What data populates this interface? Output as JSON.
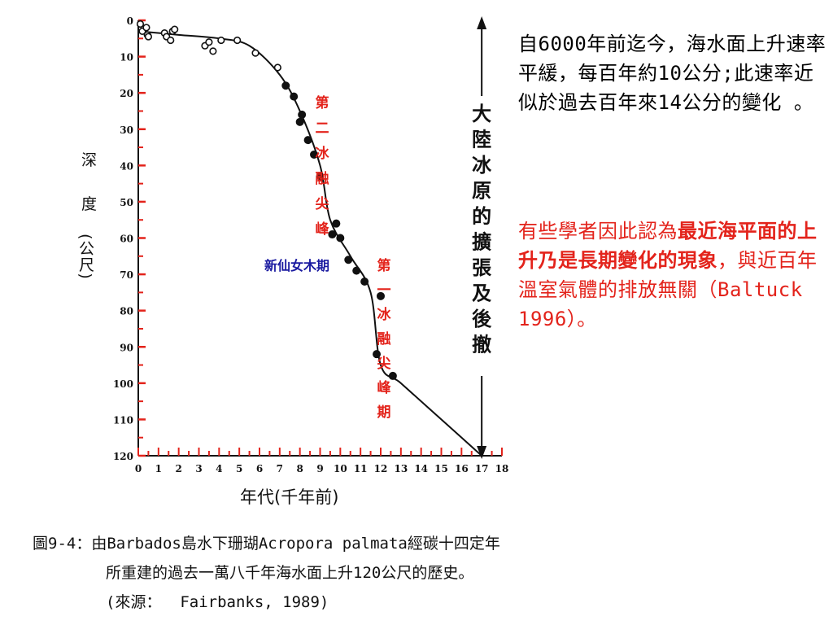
{
  "chart_data": {
    "type": "scatter",
    "x_label": "年代(千年前)",
    "y_label_parts": [
      "深",
      "度",
      "(公尺)"
    ],
    "x_ticks": [
      "0",
      "1",
      "2",
      "3",
      "4",
      "5",
      "6",
      "7",
      "8",
      "9",
      "10",
      "11",
      "12",
      "13",
      "14",
      "15",
      "16",
      "17",
      "18"
    ],
    "y_ticks": [
      "0",
      "10",
      "20",
      "30",
      "40",
      "50",
      "60",
      "70",
      "80",
      "90",
      "100",
      "110",
      "120"
    ],
    "xlim": [
      0,
      18
    ],
    "ylim": [
      0,
      120
    ],
    "y_inverted": true,
    "colors": {
      "axis": "#111111",
      "minor_ticks": "#e3231b",
      "annotation_red": "#e3231b",
      "annotation_blue": "#1a1aa0"
    },
    "series": [
      {
        "marker": "open-circle",
        "points": [
          [
            0.1,
            1
          ],
          [
            0.2,
            3
          ],
          [
            0.4,
            2
          ],
          [
            0.45,
            4
          ],
          [
            0.5,
            4.5
          ],
          [
            1.3,
            3.5
          ],
          [
            1.4,
            4.5
          ],
          [
            1.6,
            5.5
          ],
          [
            1.7,
            3
          ],
          [
            1.8,
            2.5
          ],
          [
            3.3,
            7
          ],
          [
            3.5,
            6
          ],
          [
            3.7,
            8.5
          ],
          [
            4.1,
            5.5
          ],
          [
            4.9,
            5.5
          ],
          [
            5.8,
            9
          ],
          [
            6.9,
            13
          ]
        ]
      },
      {
        "marker": "filled-circle",
        "points": [
          [
            7.3,
            18
          ],
          [
            7.7,
            21
          ],
          [
            8.1,
            26
          ],
          [
            8.0,
            28
          ],
          [
            8.4,
            33
          ],
          [
            8.7,
            37
          ],
          [
            9.0,
            43
          ],
          [
            9.6,
            59
          ],
          [
            9.8,
            56
          ],
          [
            10.0,
            60
          ],
          [
            10.4,
            66
          ],
          [
            10.8,
            69
          ],
          [
            11.2,
            72
          ],
          [
            11.8,
            92
          ],
          [
            12.0,
            76
          ],
          [
            12.6,
            98
          ]
        ]
      }
    ],
    "curve": [
      [
        0,
        3
      ],
      [
        2,
        4
      ],
      [
        4,
        5
      ],
      [
        5.5,
        7
      ],
      [
        7,
        15
      ],
      [
        8,
        25
      ],
      [
        9,
        40
      ],
      [
        9.5,
        55
      ],
      [
        10.5,
        65
      ],
      [
        11.5,
        75
      ],
      [
        12,
        95
      ],
      [
        13,
        100
      ],
      [
        15,
        110
      ],
      [
        17,
        120
      ]
    ],
    "annotations": {
      "mwp2": "第二冰融尖峰",
      "younger_dryas": "新仙女木期",
      "mwp1": "第一冰融尖峰期",
      "ice_sheet": "大陸冰原的擴張及後撤"
    }
  },
  "note1": "自6000年前迄今，海水面上升速率平緩，每百年約10公分;此速率近似於過去百年來14公分的變化 。",
  "note2": {
    "part1": "有些學者因此認為",
    "bold": "最近海平面的上升乃是長期變化的現象",
    "part2": "，與近百年溫室氣體的排放無關（Baltuck 1996）。"
  },
  "caption": {
    "line1": "圖9-4：由Barbados島水下珊瑚Acropora palmata經碳十四定年",
    "line2": "所重建的過去一萬八千年海水面上升120公尺的歷史。",
    "line3": "(來源：  Fairbanks, 1989)"
  }
}
